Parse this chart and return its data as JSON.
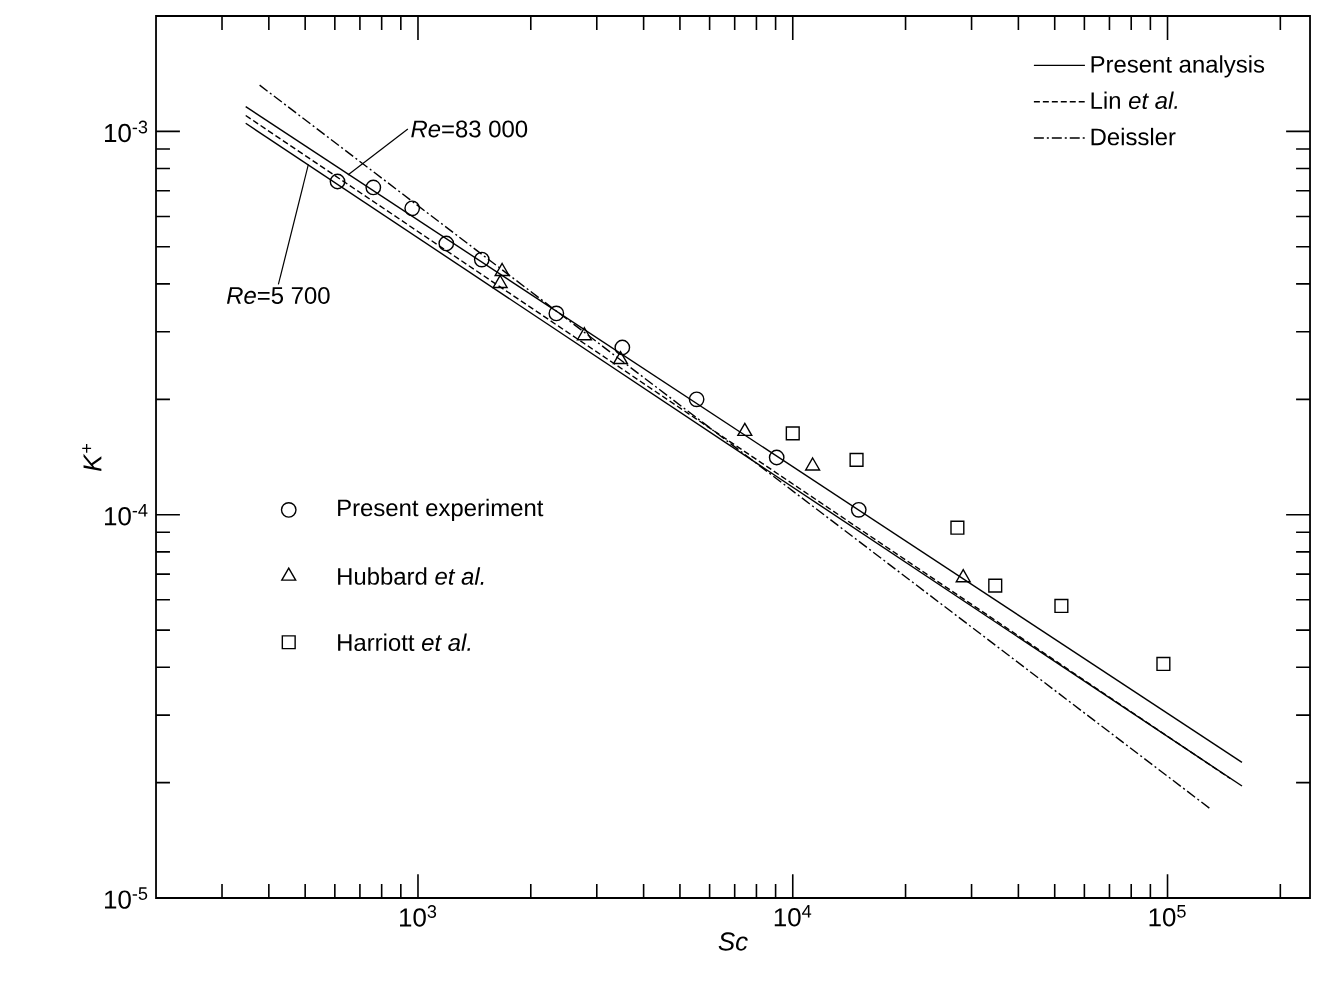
{
  "chart_data": {
    "type": "line",
    "xlabel": "Sc",
    "ylabel": "*K*$^{+}$",
    "log": "xy",
    "xlim": [
      200,
      240000
    ],
    "ylim": [
      1e-05,
      0.002
    ],
    "xticks": [
      {
        "value": 1000,
        "label": "10$^{3}$"
      },
      {
        "value": 10000,
        "label": "10$^{4}$"
      },
      {
        "value": 100000,
        "label": "10$^{5}$"
      },
      {
        "value": 300,
        "label": null
      },
      {
        "value": 400,
        "label": null
      },
      {
        "value": 500,
        "label": null
      },
      {
        "value": 600,
        "label": null
      },
      {
        "value": 700,
        "label": null
      },
      {
        "value": 800,
        "label": null
      },
      {
        "value": 900,
        "label": null
      },
      {
        "value": 2000,
        "label": null
      },
      {
        "value": 3000,
        "label": null
      },
      {
        "value": 4000,
        "label": null
      },
      {
        "value": 5000,
        "label": null
      },
      {
        "value": 6000,
        "label": null
      },
      {
        "value": 7000,
        "label": null
      },
      {
        "value": 8000,
        "label": null
      },
      {
        "value": 9000,
        "label": null
      },
      {
        "value": 20000,
        "label": null
      },
      {
        "value": 30000,
        "label": null
      },
      {
        "value": 40000,
        "label": null
      },
      {
        "value": 50000,
        "label": null
      },
      {
        "value": 60000,
        "label": null
      },
      {
        "value": 70000,
        "label": null
      },
      {
        "value": 80000,
        "label": null
      },
      {
        "value": 90000,
        "label": null
      },
      {
        "value": 200000,
        "label": null
      }
    ],
    "yticks": [
      {
        "value": 1e-05,
        "label": "10$^{-5}$"
      },
      {
        "value": 0.0001,
        "label": "10$^{-4}$"
      },
      {
        "value": 0.001,
        "label": "10$^{-3}$"
      },
      {
        "value": 2e-05,
        "label": null
      },
      {
        "value": 3e-05,
        "label": null
      },
      {
        "value": 4e-05,
        "label": null
      },
      {
        "value": 5e-05,
        "label": null
      },
      {
        "value": 6e-05,
        "label": null
      },
      {
        "value": 7e-05,
        "label": null
      },
      {
        "value": 8e-05,
        "label": null
      },
      {
        "value": 9e-05,
        "label": null
      },
      {
        "value": 0.0002,
        "label": null
      },
      {
        "value": 0.0003,
        "label": null
      },
      {
        "value": 0.0004,
        "label": null
      },
      {
        "value": 0.0005,
        "label": null
      },
      {
        "value": 0.0006,
        "label": null
      },
      {
        "value": 0.0007,
        "label": null
      },
      {
        "value": 0.0008,
        "label": null
      },
      {
        "value": 0.0009,
        "label": null
      }
    ],
    "legend": "top right",
    "grid": false,
    "series": [
      {
        "name": "Present analysis",
        "color": "#000000",
        "line_style": "solid",
        "x": [
          347,
          158000
        ],
        "values": [
          0.00116,
          2.26e-05
        ]
      },
      {
        "color": "#000000",
        "line_style": "solid",
        "x": [
          347,
          158000
        ],
        "values": [
          0.00105,
          1.96e-05
        ]
      },
      {
        "name": "Lin *et al.*",
        "color": "#000000",
        "line_style": "dashed",
        "x": [
          347,
          147000
        ],
        "values": [
          0.0011,
          2.05e-05
        ]
      },
      {
        "name": "Deissler",
        "color": "#000000",
        "line_style": "dashdot",
        "x": [
          378,
          131000
        ],
        "values": [
          0.00132,
          1.7e-05
        ]
      },
      {
        "type": "scatter",
        "name": "Present experiment",
        "color": "#000000",
        "marker": "circle",
        "x": [
          610,
          760,
          965,
          1190,
          1480,
          2340,
          3510,
          5540,
          9060,
          15000
        ],
        "values": [
          0.00074,
          0.000714,
          0.00063,
          0.00051,
          0.000463,
          0.000335,
          0.000273,
          0.0002,
          0.000141,
          0.000103
        ]
      },
      {
        "type": "scatter",
        "name": "Hubbard *et al.*",
        "color": "#000000",
        "marker": "triangle",
        "x": [
          1677,
          1657,
          2780,
          3470,
          7450,
          11300,
          28500
        ],
        "values": [
          0.000431,
          0.000401,
          0.000293,
          0.000254,
          0.000165,
          0.000134,
          6.85e-05
        ]
      },
      {
        "type": "scatter",
        "name": "Harriott *et al.*",
        "color": "#000000",
        "marker": "square",
        "x": [
          10000,
          14800,
          27500,
          34700,
          52100,
          97500
        ],
        "values": [
          0.000163,
          0.000139,
          9.25e-05,
          6.53e-05,
          5.78e-05,
          4.08e-05
        ]
      }
    ],
    "annotations": [
      {
        "text": "*Re*=83 000",
        "x": 650,
        "y": 0.00077
      },
      {
        "text": "*Re*=5 700",
        "x": 510,
        "y": 0.00082
      }
    ]
  }
}
